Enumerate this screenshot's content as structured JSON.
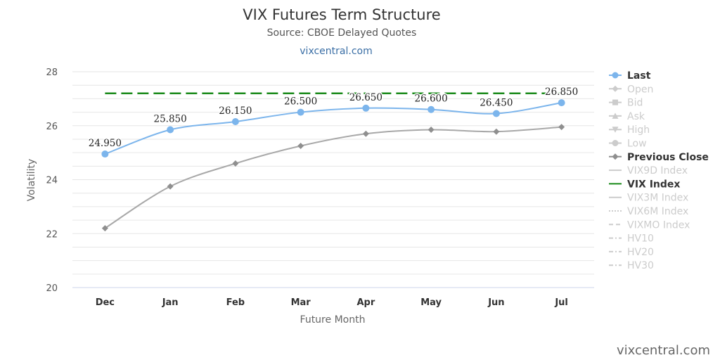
{
  "header": {
    "title": "VIX Futures Term Structure",
    "subtitle": "Source: CBOE Delayed Quotes",
    "link": "vixcentral.com"
  },
  "watermark": "vixcentral.com",
  "colors": {
    "last": "#7cb5ec",
    "previous_close": "#a8a8a8",
    "vix_index": "#1a8a1a",
    "grid": "#e6e6e6",
    "legend_active": "#333333",
    "legend_inactive": "#cccccc"
  },
  "chart_data": {
    "type": "line",
    "title": "VIX Futures Term Structure",
    "subtitle": "Source: CBOE Delayed Quotes",
    "xlabel": "Future Month",
    "ylabel": "Volatility",
    "categories": [
      "Dec",
      "Jan",
      "Feb",
      "Mar",
      "Apr",
      "May",
      "Jun",
      "Jul"
    ],
    "ylim": [
      20,
      28
    ],
    "yticks": [
      20,
      22,
      24,
      26,
      28
    ],
    "grid": true,
    "legend_position": "right",
    "series": [
      {
        "name": "Last",
        "values": [
          24.95,
          25.85,
          26.15,
          26.5,
          26.65,
          26.6,
          26.45,
          26.85
        ],
        "labels": [
          "24.950",
          "25.850",
          "26.150",
          "26.500",
          "26.650",
          "26.600",
          "26.450",
          "26.850"
        ],
        "color": "#7cb5ec"
      },
      {
        "name": "Previous Close",
        "values": [
          22.2,
          23.75,
          24.6,
          25.25,
          25.7,
          25.85,
          25.78,
          25.95
        ],
        "color": "#a8a8a8"
      },
      {
        "name": "VIX Index",
        "values": [
          27.2,
          27.2,
          27.2,
          27.2,
          27.2,
          27.2,
          27.2,
          27.2
        ],
        "color": "#1a8a1a"
      }
    ],
    "legend": [
      {
        "name": "Last",
        "symbol": "circle-line",
        "active": true
      },
      {
        "name": "Open",
        "symbol": "diamond-line",
        "active": false
      },
      {
        "name": "Bid",
        "symbol": "square-line",
        "active": false
      },
      {
        "name": "Ask",
        "symbol": "triangle-line",
        "active": false
      },
      {
        "name": "High",
        "symbol": "triangle-down-line",
        "active": false
      },
      {
        "name": "Low",
        "symbol": "circle-line",
        "active": false
      },
      {
        "name": "Previous Close",
        "symbol": "diamond-line",
        "active": true
      },
      {
        "name": "VIX9D Index",
        "symbol": "solid-line",
        "active": false
      },
      {
        "name": "VIX Index",
        "symbol": "solid-line",
        "active": true
      },
      {
        "name": "VIX3M Index",
        "symbol": "solid-line",
        "active": false
      },
      {
        "name": "VIX6M Index",
        "symbol": "dotted-line",
        "active": false
      },
      {
        "name": "VIXMO Index",
        "symbol": "dashed-line",
        "active": false
      },
      {
        "name": "HV10",
        "symbol": "dashdot-line",
        "active": false
      },
      {
        "name": "HV20",
        "symbol": "dashdot-line",
        "active": false
      },
      {
        "name": "HV30",
        "symbol": "dashdot-line",
        "active": false
      }
    ]
  }
}
